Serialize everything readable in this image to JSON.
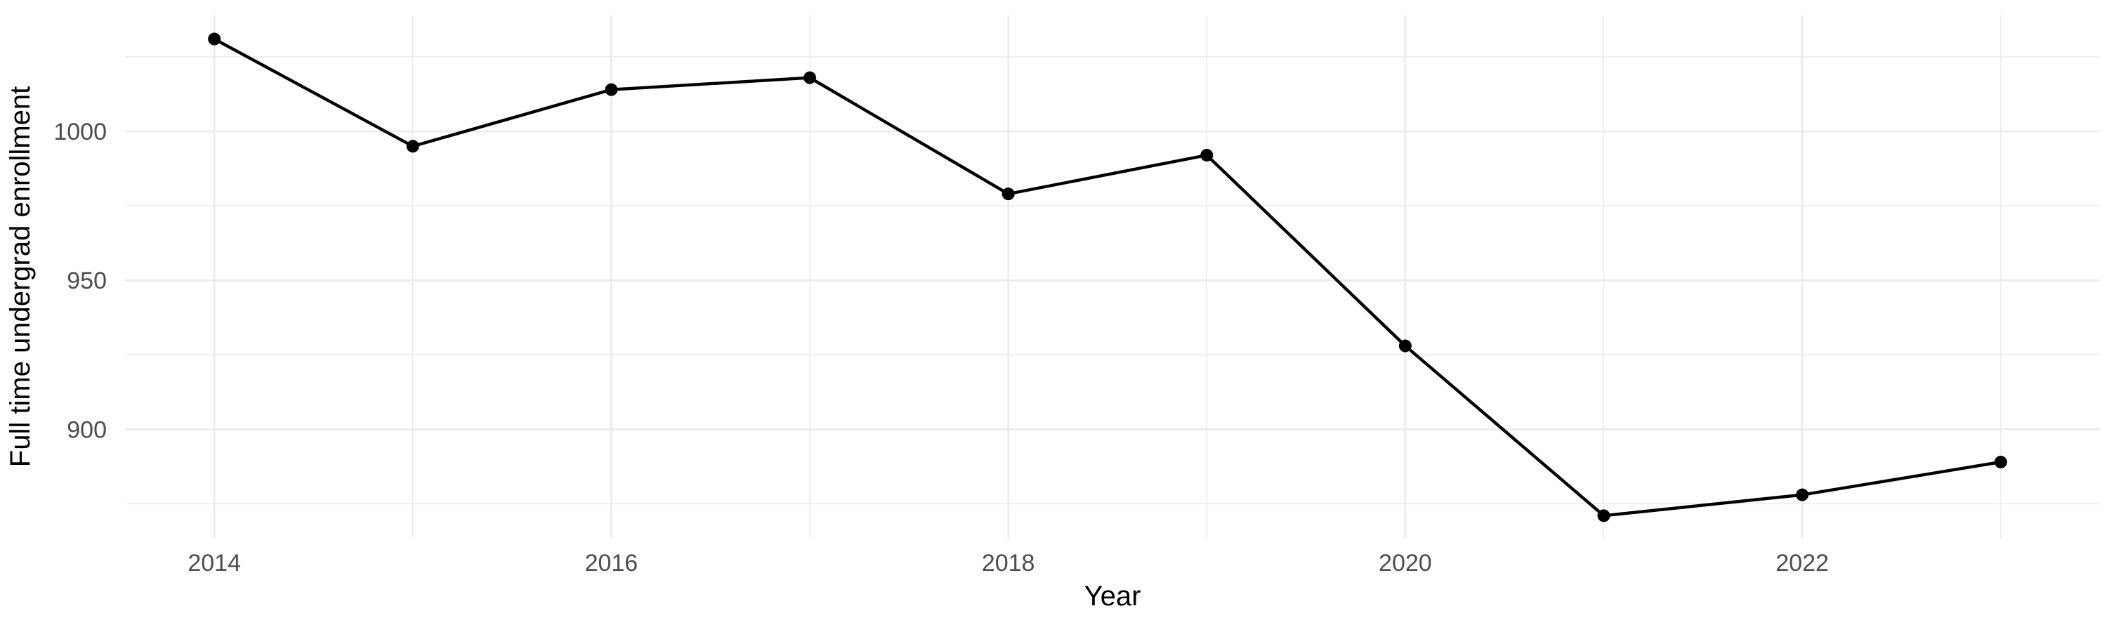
{
  "chart_data": {
    "type": "line",
    "title": "",
    "xlabel": "Year",
    "ylabel": "Full time undergrad enrollment",
    "x": [
      2014,
      2015,
      2016,
      2017,
      2018,
      2019,
      2020,
      2021,
      2022,
      2023
    ],
    "series": [
      {
        "name": "Full time undergrad enrollment",
        "values": [
          1031,
          995,
          1014,
          1018,
          979,
          992,
          928,
          871,
          878,
          889
        ]
      }
    ],
    "xlim": [
      2013.55,
      2023.5
    ],
    "ylim": [
      863.3,
      1038.9
    ],
    "x_major_ticks": [
      2014,
      2016,
      2018,
      2020,
      2022
    ],
    "x_minor_gridlines": [
      2015,
      2017,
      2019,
      2021,
      2023
    ],
    "y_major_ticks": [
      900,
      950,
      1000
    ],
    "y_minor_gridlines": [
      875,
      925,
      975,
      1025
    ],
    "grid": "on",
    "legend_position": "none",
    "marker": "filled-circle",
    "colors": {
      "line": "#000000",
      "point": "#000000",
      "grid_major": "#EBEBEB",
      "grid_minor": "#EBEBEB",
      "tick_label": "#4D4D4D",
      "axis_title": "#000000",
      "background": "#FFFFFF"
    }
  }
}
